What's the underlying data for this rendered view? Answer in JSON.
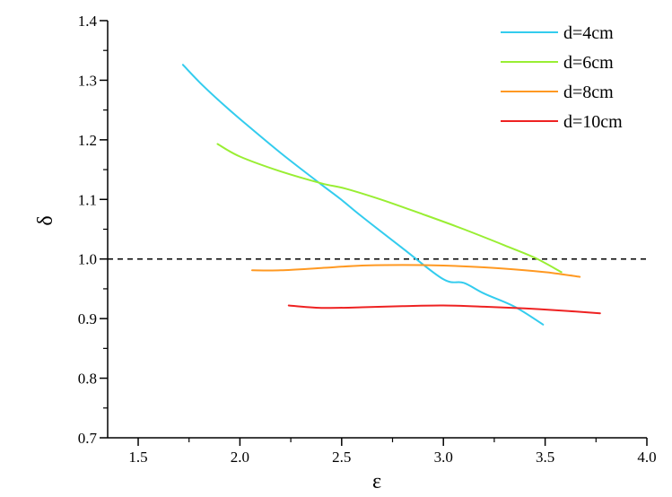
{
  "chart_data": {
    "type": "line",
    "title": "",
    "xlabel": "ε",
    "ylabel": "δ",
    "xlim": [
      1.35,
      4.0
    ],
    "ylim": [
      0.7,
      1.4
    ],
    "xticks": [
      "1.5",
      "2.0",
      "2.5",
      "3.0",
      "3.5",
      "4.0"
    ],
    "yticks": [
      "0.7",
      "0.8",
      "0.9",
      "1.0",
      "1.1",
      "1.2",
      "1.3",
      "1.4"
    ],
    "grid": false,
    "legend_position": "top-right",
    "reference_line": {
      "y": 1.0,
      "style": "dashed",
      "color": "#000000"
    },
    "series": [
      {
        "name": "d=4cm",
        "color": "#33CCEE",
        "points": [
          [
            1.72,
            1.326
          ],
          [
            1.8,
            1.297
          ],
          [
            1.9,
            1.265
          ],
          [
            2.0,
            1.235
          ],
          [
            2.2,
            1.178
          ],
          [
            2.4,
            1.125
          ],
          [
            2.5,
            1.099
          ],
          [
            2.6,
            1.071
          ],
          [
            2.8,
            1.018
          ],
          [
            3.0,
            0.966
          ],
          [
            3.1,
            0.96
          ],
          [
            3.2,
            0.942
          ],
          [
            3.35,
            0.92
          ],
          [
            3.49,
            0.89
          ]
        ]
      },
      {
        "name": "d=6cm",
        "color": "#99EE33",
        "points": [
          [
            1.89,
            1.193
          ],
          [
            2.0,
            1.172
          ],
          [
            2.2,
            1.147
          ],
          [
            2.4,
            1.127
          ],
          [
            2.52,
            1.118
          ],
          [
            2.7,
            1.099
          ],
          [
            2.9,
            1.075
          ],
          [
            3.1,
            1.05
          ],
          [
            3.3,
            1.023
          ],
          [
            3.45,
            1.002
          ],
          [
            3.58,
            0.978
          ]
        ]
      },
      {
        "name": "d=8cm",
        "color": "#FF9922",
        "points": [
          [
            2.06,
            0.981
          ],
          [
            2.2,
            0.981
          ],
          [
            2.4,
            0.985
          ],
          [
            2.6,
            0.989
          ],
          [
            2.8,
            0.99
          ],
          [
            3.0,
            0.989
          ],
          [
            3.2,
            0.986
          ],
          [
            3.4,
            0.981
          ],
          [
            3.55,
            0.976
          ],
          [
            3.67,
            0.97
          ]
        ]
      },
      {
        "name": "d=10cm",
        "color": "#EE2222",
        "points": [
          [
            2.24,
            0.922
          ],
          [
            2.4,
            0.918
          ],
          [
            2.6,
            0.919
          ],
          [
            2.8,
            0.921
          ],
          [
            3.0,
            0.922
          ],
          [
            3.2,
            0.92
          ],
          [
            3.4,
            0.917
          ],
          [
            3.6,
            0.913
          ],
          [
            3.77,
            0.909
          ]
        ]
      }
    ]
  }
}
